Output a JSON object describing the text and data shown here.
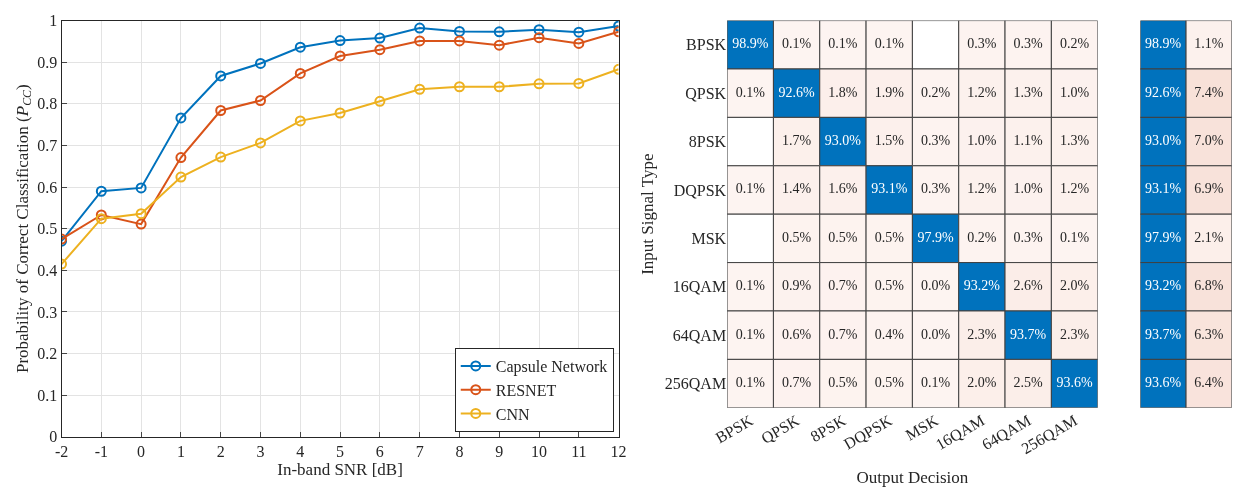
{
  "chart_data": [
    {
      "type": "line",
      "xlabel": "In-band SNR [dB]",
      "ylabel": "Probability of Correct Classification (P$_{CC}$)",
      "x": [
        -2,
        -1,
        0,
        1,
        2,
        3,
        4,
        5,
        6,
        7,
        8,
        9,
        10,
        11,
        12
      ],
      "series": [
        {
          "name": "Capsule Network",
          "color": "#0072bd",
          "values": [
            0.47,
            0.59,
            0.598,
            0.766,
            0.867,
            0.897,
            0.936,
            0.952,
            0.958,
            0.982,
            0.974,
            0.973,
            0.978,
            0.972,
            0.987
          ]
        },
        {
          "name": "RESNET",
          "color": "#d95319",
          "values": [
            0.475,
            0.533,
            0.511,
            0.671,
            0.784,
            0.808,
            0.873,
            0.915,
            0.93,
            0.951,
            0.951,
            0.941,
            0.959,
            0.945,
            0.973
          ]
        },
        {
          "name": "CNN",
          "color": "#edb120",
          "values": [
            0.415,
            0.524,
            0.536,
            0.624,
            0.672,
            0.706,
            0.759,
            0.778,
            0.806,
            0.835,
            0.841,
            0.841,
            0.848,
            0.849,
            0.883
          ]
        }
      ],
      "xlim": [
        -2,
        12
      ],
      "xticks": [
        -2,
        -1,
        0,
        1,
        2,
        3,
        4,
        5,
        6,
        7,
        8,
        9,
        10,
        11,
        12
      ],
      "ylim": [
        0,
        1
      ],
      "yticks": [
        0,
        0.1,
        0.2,
        0.3,
        0.4,
        0.5,
        0.6,
        0.7,
        0.8,
        0.9,
        1
      ],
      "grid": true,
      "legend": "bottom right",
      "marker": "circle",
      "line_style": "solid"
    },
    {
      "type": "heatmap",
      "xlabel": "Output Decision",
      "ylabel": "Input Signal Type",
      "categories": [
        "BPSK",
        "QPSK",
        "8PSK",
        "DQPSK",
        "MSK",
        "16QAM",
        "64QAM",
        "256QAM"
      ],
      "y_categories": [
        "BPSK",
        "QPSK",
        "8PSK",
        "DQPSK",
        "MSK",
        "16QAM",
        "64QAM",
        "256QAM"
      ],
      "cells": [
        [
          98.9,
          0.1,
          0.1,
          0.1,
          null,
          0.3,
          0.3,
          0.2
        ],
        [
          0.1,
          92.6,
          1.8,
          1.9,
          0.2,
          1.2,
          1.3,
          1.0
        ],
        [
          null,
          1.7,
          93.0,
          1.5,
          0.3,
          1.0,
          1.1,
          1.3
        ],
        [
          0.1,
          1.4,
          1.6,
          93.1,
          0.3,
          1.2,
          1.0,
          1.2
        ],
        [
          null,
          0.5,
          0.5,
          0.5,
          97.9,
          0.2,
          0.3,
          0.1
        ],
        [
          0.1,
          0.9,
          0.7,
          0.5,
          0.0,
          93.2,
          2.6,
          2.0
        ],
        [
          0.1,
          0.6,
          0.7,
          0.4,
          0.0,
          2.3,
          93.7,
          2.3
        ],
        [
          0.1,
          0.7,
          0.5,
          0.5,
          0.1,
          2.0,
          2.5,
          93.6
        ]
      ],
      "cell_labels": [
        [
          "98.9%",
          "0.1%",
          "0.1%",
          "0.1%",
          null,
          "0.3%",
          "0.3%",
          "0.2%"
        ],
        [
          "0.1%",
          "92.6%",
          "1.8%",
          "1.9%",
          "0.2%",
          "1.2%",
          "1.3%",
          "1.0%"
        ],
        [
          null,
          "1.7%",
          "93.0%",
          "1.5%",
          "0.3%",
          "1.0%",
          "1.1%",
          "1.3%"
        ],
        [
          "0.1%",
          "1.4%",
          "1.6%",
          "93.1%",
          "0.3%",
          "1.2%",
          "1.0%",
          "1.2%"
        ],
        [
          null,
          "0.5%",
          "0.5%",
          "0.5%",
          "97.9%",
          "0.2%",
          "0.3%",
          "0.1%"
        ],
        [
          "0.1%",
          "0.9%",
          "0.7%",
          "0.5%",
          "0.0%",
          "93.2%",
          "2.6%",
          "2.0%"
        ],
        [
          "0.1%",
          "0.6%",
          "0.7%",
          "0.4%",
          "0.0%",
          "2.3%",
          "93.7%",
          "2.3%"
        ],
        [
          "0.1%",
          "0.7%",
          "0.5%",
          "0.5%",
          "0.1%",
          "2.0%",
          "2.5%",
          "93.6%"
        ]
      ]
    },
    {
      "type": "heatmap",
      "categories": [
        null,
        null
      ],
      "y_categories": [
        null,
        null,
        null,
        null,
        null,
        null,
        null,
        null
      ],
      "cells": [
        [
          98.9,
          1.1
        ],
        [
          92.6,
          7.4
        ],
        [
          93.0,
          7.0
        ],
        [
          93.1,
          6.9
        ],
        [
          97.9,
          2.1
        ],
        [
          93.2,
          6.8
        ],
        [
          93.7,
          6.3
        ],
        [
          93.6,
          6.4
        ]
      ],
      "cell_labels": [
        [
          "98.9%",
          "1.1%"
        ],
        [
          "92.6%",
          "7.4%"
        ],
        [
          "93.0%",
          "7.0%"
        ],
        [
          "93.1%",
          "6.9%"
        ],
        [
          "97.9%",
          "2.1%"
        ],
        [
          "93.2%",
          "6.8%"
        ],
        [
          "93.7%",
          "6.3%"
        ],
        [
          "93.6%",
          "6.4%"
        ]
      ]
    }
  ]
}
